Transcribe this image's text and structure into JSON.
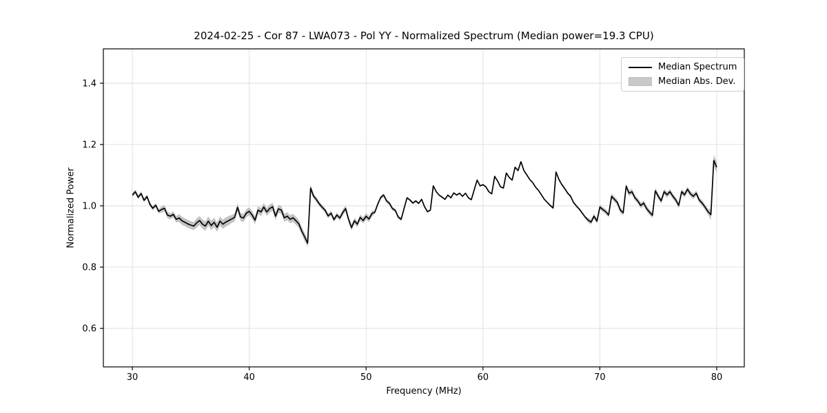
{
  "chart_data": {
    "type": "line",
    "title": "2024-02-25 - Cor 87 - LWA073 - Pol YY - Normalized Spectrum (Median power=19.3 CPU)",
    "xlabel": "Frequency (MHz)",
    "ylabel": "Normalized Power",
    "xlim": [
      27.52,
      82.36
    ],
    "ylim": [
      0.4745,
      1.512
    ],
    "xticks": [
      "30",
      "40",
      "50",
      "60",
      "70",
      "80"
    ],
    "yticks": [
      "0.6",
      "0.8",
      "1.0",
      "1.2",
      "1.4"
    ],
    "grid": true,
    "legend": {
      "position": "upper right",
      "entries": [
        {
          "label": "Median Spectrum",
          "type": "line",
          "color": "#000000"
        },
        {
          "label": "Median Abs. Dev.",
          "type": "band",
          "color": "#c9c9c9"
        }
      ]
    },
    "colors": {
      "line": "#000000",
      "band": "#808080",
      "band_opacity": 0.47,
      "grid": "#dedede",
      "spine": "#000000",
      "background": "#ffffff"
    },
    "series": [
      {
        "name": "Median Spectrum",
        "style": "line",
        "x_start": 30.0,
        "x_step": 0.25,
        "values": [
          1.035,
          1.046,
          1.028,
          1.04,
          1.018,
          1.03,
          1.005,
          0.992,
          1.002,
          0.982,
          0.988,
          0.992,
          0.97,
          0.966,
          0.972,
          0.956,
          0.96,
          0.951,
          0.946,
          0.941,
          0.937,
          0.934,
          0.944,
          0.952,
          0.94,
          0.934,
          0.95,
          0.936,
          0.946,
          0.93,
          0.95,
          0.94,
          0.947,
          0.952,
          0.957,
          0.962,
          0.995,
          0.964,
          0.96,
          0.976,
          0.982,
          0.97,
          0.953,
          0.986,
          0.98,
          0.996,
          0.98,
          0.991,
          0.997,
          0.966,
          0.99,
          0.986,
          0.961,
          0.966,
          0.956,
          0.961,
          0.951,
          0.941,
          0.917,
          0.898,
          0.878,
          1.058,
          1.032,
          1.02,
          1.006,
          0.995,
          0.985,
          0.967,
          0.976,
          0.955,
          0.97,
          0.96,
          0.978,
          0.991,
          0.956,
          0.929,
          0.951,
          0.94,
          0.962,
          0.952,
          0.966,
          0.957,
          0.975,
          0.979,
          1.006,
          1.027,
          1.035,
          1.016,
          1.008,
          0.991,
          0.985,
          0.963,
          0.956,
          0.991,
          1.026,
          1.019,
          1.009,
          1.016,
          1.008,
          1.021,
          0.997,
          0.981,
          0.986,
          1.065,
          1.046,
          1.035,
          1.028,
          1.021,
          1.035,
          1.026,
          1.042,
          1.035,
          1.041,
          1.031,
          1.041,
          1.026,
          1.02,
          1.052,
          1.084,
          1.065,
          1.069,
          1.062,
          1.046,
          1.039,
          1.096,
          1.081,
          1.062,
          1.058,
          1.107,
          1.092,
          1.084,
          1.126,
          1.115,
          1.144,
          1.115,
          1.101,
          1.086,
          1.076,
          1.061,
          1.05,
          1.036,
          1.021,
          1.011,
          1.001,
          0.993,
          1.11,
          1.086,
          1.069,
          1.056,
          1.041,
          1.031,
          1.011,
          0.999,
          0.989,
          0.976,
          0.963,
          0.953,
          0.947,
          0.966,
          0.95,
          0.996,
          0.988,
          0.981,
          0.97,
          1.031,
          1.021,
          1.011,
          0.986,
          0.977,
          1.064,
          1.041,
          1.046,
          1.026,
          1.016,
          1.001,
          1.009,
          0.991,
          0.979,
          0.969,
          1.049,
          1.031,
          1.016,
          1.046,
          1.036,
          1.046,
          1.031,
          1.019,
          1.001,
          1.046,
          1.036,
          1.054,
          1.039,
          1.031,
          1.041,
          1.019,
          1.009,
          0.996,
          0.981,
          0.971,
          1.148,
          1.126
        ]
      },
      {
        "name": "Median Abs. Dev.",
        "style": "band-around-median",
        "mad_regions": [
          {
            "from": 30.0,
            "to": 32.5,
            "mad": 0.007
          },
          {
            "from": 32.5,
            "to": 34.0,
            "mad": 0.01
          },
          {
            "from": 34.0,
            "to": 35.5,
            "mad": 0.013
          },
          {
            "from": 35.5,
            "to": 38.5,
            "mad": 0.015
          },
          {
            "from": 38.5,
            "to": 44.0,
            "mad": 0.013
          },
          {
            "from": 44.0,
            "to": 45.4,
            "mad": 0.013
          },
          {
            "from": 45.4,
            "to": 48.0,
            "mad": 0.008
          },
          {
            "from": 48.0,
            "to": 50.75,
            "mad": 0.01
          },
          {
            "from": 50.75,
            "to": 53.25,
            "mad": 0.006
          },
          {
            "from": 53.25,
            "to": 55.5,
            "mad": 0.004
          },
          {
            "from": 55.5,
            "to": 65.75,
            "mad": 0.0025
          },
          {
            "from": 65.75,
            "to": 69.0,
            "mad": 0.004
          },
          {
            "from": 69.0,
            "to": 71.0,
            "mad": 0.008
          },
          {
            "from": 71.0,
            "to": 79.5,
            "mad": 0.009
          },
          {
            "from": 79.5,
            "to": 80.01,
            "mad": 0.018
          }
        ]
      }
    ]
  }
}
